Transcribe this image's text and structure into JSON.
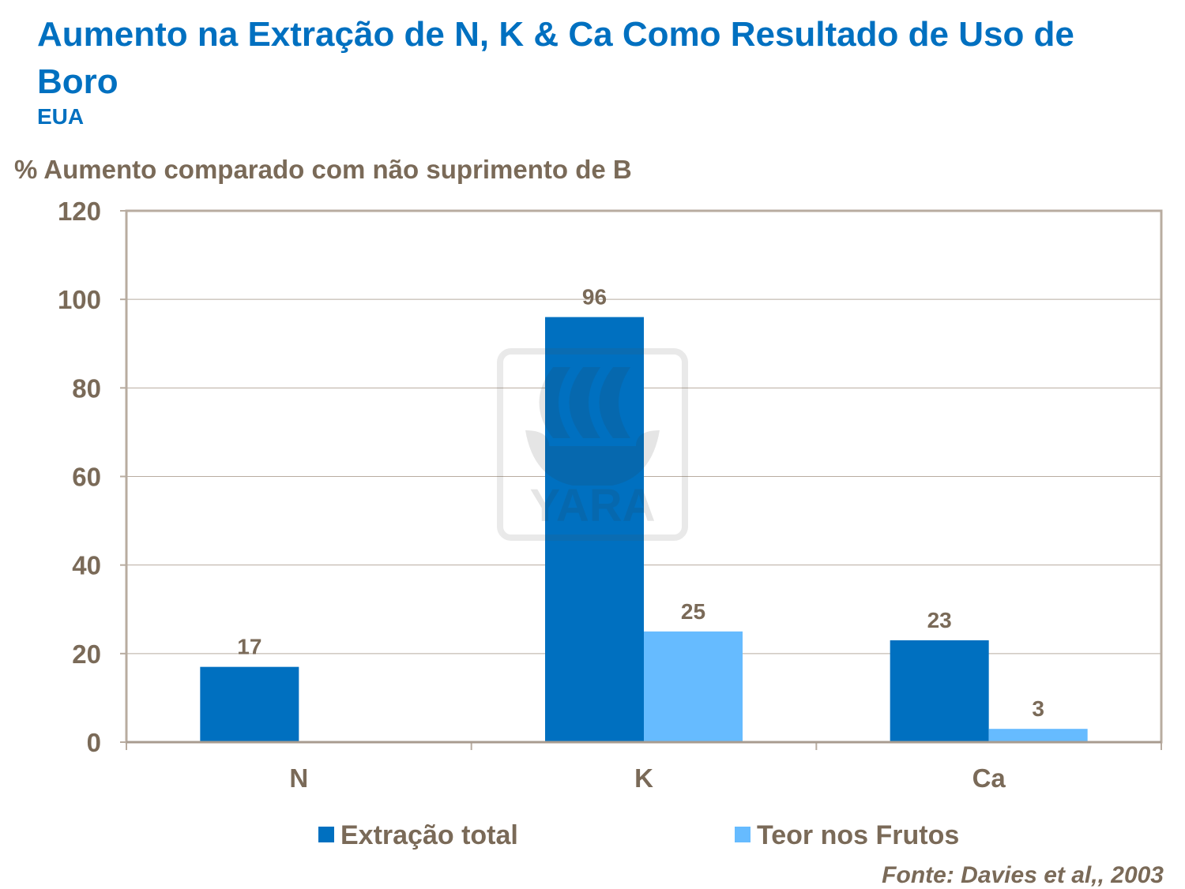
{
  "chart_data": {
    "type": "bar",
    "title": "Aumento na Extração de N, K & Ca Como Resultado de Uso de Boro",
    "subtitle": "EUA",
    "ylabel": "% Aumento comparado com não suprimento de B",
    "xlabel": "",
    "categories": [
      "N",
      "K",
      "Ca"
    ],
    "series": [
      {
        "name": "Extração total",
        "values": [
          17,
          96,
          23
        ],
        "labels": [
          "17",
          "96",
          "23"
        ],
        "color": "#0070c0"
      },
      {
        "name": "Teor nos Frutos",
        "values": [
          null,
          25,
          3
        ],
        "labels": [
          "",
          "25",
          "3"
        ],
        "color": "#66bbff"
      }
    ],
    "ylim": [
      0,
      120
    ],
    "yticks": [
      "0",
      "20",
      "40",
      "60",
      "80",
      "100",
      "120"
    ],
    "grid": true,
    "legend": "bottom",
    "source": "Fonte: Davies et al,, 2003",
    "watermark": "YARA"
  }
}
